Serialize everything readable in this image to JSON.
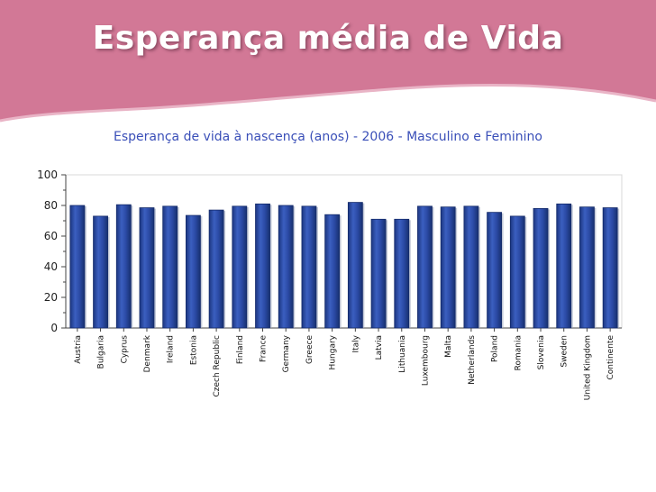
{
  "slide": {
    "title": "Esperança média de Vida"
  },
  "colors": {
    "banner": "#d27896",
    "bar": "#2a4a9c",
    "bar_edge": "#132a6a",
    "axis": "#444444",
    "chart_title": "#3a4fb8"
  },
  "chart_data": {
    "type": "bar",
    "title": "Esperança de vida à nascença (anos) - 2006 - Masculino e Feminino",
    "xlabel": "",
    "ylabel": "",
    "ylim": [
      0,
      100
    ],
    "yticks": [
      0,
      20,
      40,
      60,
      80,
      100
    ],
    "grid": false,
    "categories": [
      "Austria",
      "Bulgaria",
      "Cyprus",
      "Denmark",
      "Ireland",
      "Estonia",
      "Czech Republic",
      "Finland",
      "France",
      "Germany",
      "Greece",
      "Hungary",
      "Italy",
      "Latvia",
      "Lithuania",
      "Luxembourg",
      "Malta",
      "Netherlands",
      "Poland",
      "Romania",
      "Slovenia",
      "Sweden",
      "United Kingdom",
      "Continente"
    ],
    "values": [
      80,
      73,
      80.5,
      78.5,
      79.5,
      73.5,
      77,
      79.5,
      81,
      80,
      79.5,
      74,
      82,
      71,
      71,
      79.5,
      79,
      79.5,
      75.5,
      73,
      78,
      81,
      79,
      78.5
    ]
  }
}
